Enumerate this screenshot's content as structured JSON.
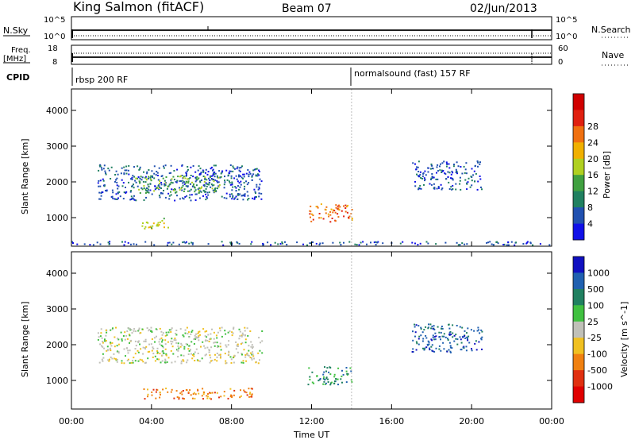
{
  "header": {
    "station": "King Salmon (fitACF)",
    "beam": "Beam 07",
    "date": "02/Jun/2013"
  },
  "top_panels": {
    "nsky_label": "N.Sky",
    "nsky_ticks": [
      "10^5",
      "10^0"
    ],
    "nsearch_label": "N.Search",
    "nsearch_ticks": [
      "10^5",
      "10^0"
    ],
    "freq_label_1": "Freq.",
    "freq_label_2": "[MHz]",
    "freq_ticks": [
      "18",
      "8"
    ],
    "nave_label": "Nave",
    "nave_ticks": [
      "60",
      "0"
    ],
    "cpid_label": "CPID",
    "cpid_segments": [
      {
        "label": "rbsp 200 RF",
        "start_hour": 0
      },
      {
        "label": "normalsound (fast) 157 RF",
        "start_hour": 14
      }
    ]
  },
  "chart_data": [
    {
      "type": "heatmap",
      "name": "power",
      "ylabel": "Slant Range [km]",
      "yticks": [
        "1000",
        "2000",
        "3000",
        "4000"
      ],
      "ylim": [
        200,
        4600
      ],
      "xlim": [
        0,
        24
      ],
      "colorbar_label": "Power [dB]",
      "colorbar_ticks": [
        "4",
        "8",
        "12",
        "16",
        "20",
        "24",
        "28"
      ],
      "colors": [
        "#1010e8",
        "#2050b0",
        "#208060",
        "#40a040",
        "#b0d020",
        "#f0b000",
        "#f07010",
        "#e02010",
        "#d00000"
      ],
      "echo_regions": [
        {
          "t0": 0.0,
          "t1": 24.0,
          "r0": 250,
          "r1": 350,
          "level": 1
        },
        {
          "t0": 1.3,
          "t1": 9.5,
          "r0": 1500,
          "r1": 2500,
          "level": 1
        },
        {
          "t0": 3.0,
          "t1": 7.5,
          "r0": 1700,
          "r1": 2200,
          "level": 3
        },
        {
          "t0": 3.5,
          "t1": 5.0,
          "r0": 700,
          "r1": 1000,
          "level": 4
        },
        {
          "t0": 11.8,
          "t1": 14.0,
          "r0": 900,
          "r1": 1400,
          "level": 6
        },
        {
          "t0": 17.0,
          "t1": 20.5,
          "r0": 1800,
          "r1": 2600,
          "level": 1
        }
      ]
    },
    {
      "type": "heatmap",
      "name": "velocity",
      "ylabel": "Slant Range [km]",
      "yticks": [
        "1000",
        "2000",
        "3000",
        "4000"
      ],
      "ylim": [
        200,
        4600
      ],
      "xlim": [
        0,
        24
      ],
      "xlabel": "Time UT",
      "xticks": [
        "00:00",
        "04:00",
        "08:00",
        "12:00",
        "16:00",
        "20:00",
        "00:00"
      ],
      "colorbar_label": "Velocity [m s^-1]",
      "colorbar_ticks": [
        "1000",
        "500",
        "100",
        "25",
        "-25",
        "-100",
        "-500",
        "-1000"
      ],
      "colors": [
        "#1010c0",
        "#2060b0",
        "#208060",
        "#40c040",
        "#c0c0b8",
        "#f0c020",
        "#f08010",
        "#e03010",
        "#e00000"
      ],
      "echo_regions": [
        {
          "t0": 1.3,
          "t1": 9.5,
          "r0": 1500,
          "r1": 2500,
          "level": 4
        },
        {
          "t0": 3.5,
          "t1": 9.0,
          "r0": 500,
          "r1": 800,
          "level": 6
        },
        {
          "t0": 11.8,
          "t1": 14.0,
          "r0": 900,
          "r1": 1400,
          "level": 2
        },
        {
          "t0": 17.0,
          "t1": 20.5,
          "r0": 1800,
          "r1": 2600,
          "level": 1
        }
      ]
    }
  ]
}
